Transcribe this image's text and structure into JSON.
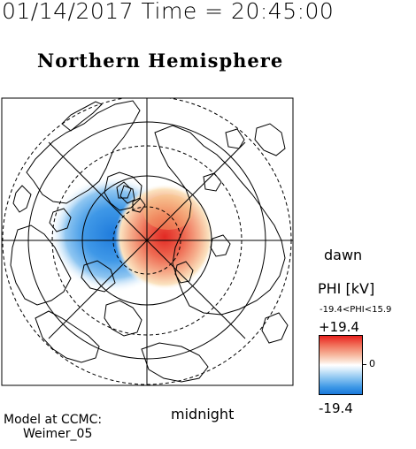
{
  "timestamp": "01/14/2017 Time = 20:45:00",
  "title": "Northern Hemisphere",
  "labels": {
    "dawn": "dawn",
    "midnight": "midnight"
  },
  "legend": {
    "title": "PHI [kV]",
    "range": "-19.4<PHI<15.9",
    "max": "+19.4",
    "zero": "0",
    "min": "-19.4",
    "colors": {
      "positive": "#e8221e",
      "neutral": "#ffffff",
      "negative": "#1a78da"
    }
  },
  "credit": {
    "line1": "Model at CCMC:",
    "line2": "Weimer_05"
  },
  "map": {
    "projection": "polar (north pole centered)",
    "potential_cells": [
      {
        "polarity": "negative",
        "side": "dusk"
      },
      {
        "polarity": "positive",
        "side": "dawn"
      }
    ]
  }
}
